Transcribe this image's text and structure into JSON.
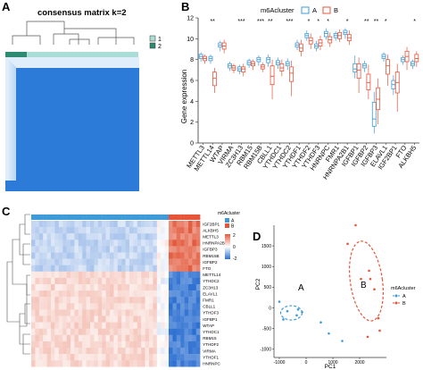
{
  "panels": {
    "a": {
      "letter": "A",
      "title": "consensus matrix k=2",
      "legend": [
        "1",
        "2"
      ],
      "colors": {
        "c1": "#a9ddd5",
        "c2": "#2e8b72",
        "light": "#dfeefa",
        "dark": "#2c7bd9"
      }
    },
    "b": {
      "letter": "B",
      "legend_title": "m6Acluster",
      "legend_items": [
        "A",
        "B"
      ],
      "ylabel": "Gene expression",
      "colors": {
        "A": "#3f9bd7",
        "B": "#e6553a"
      }
    },
    "c": {
      "letter": "C",
      "legend_title": "m6Acluster",
      "legend_items": [
        "A",
        "B"
      ],
      "scale_ticks": [
        "2",
        "0",
        "-2"
      ]
    },
    "d": {
      "letter": "D",
      "xlabel": "PC1",
      "ylabel": "PC2",
      "ellipse_labels": [
        "A",
        "B"
      ],
      "legend_title": "m6Acluster",
      "legend_items": [
        "A",
        "B"
      ]
    }
  },
  "chart_data": [
    {
      "type": "heatmap",
      "panel": "A",
      "title": "consensus matrix k=2",
      "clusters": [
        {
          "name": "1",
          "fraction": 0.08
        },
        {
          "name": "2",
          "fraction": 0.92
        }
      ],
      "legend": [
        "1",
        "2"
      ]
    },
    {
      "type": "box",
      "panel": "B",
      "ylabel": "Gene expression",
      "ylim": [
        0,
        12
      ],
      "yticks": [
        0,
        2,
        4,
        6,
        8,
        10,
        12
      ],
      "categories": [
        "METTL3",
        "METTL14",
        "WTAP",
        "VIRMA",
        "ZC3H13",
        "RBM15",
        "RBM15B",
        "CBLL1",
        "YTHDC1",
        "YTHDC2",
        "YTHDF1",
        "YTHDF2",
        "YTHDF3",
        "HNRNPC",
        "FMR1",
        "HNRNPA2B1",
        "IGFBP1",
        "IGFBP2",
        "IGFBP3",
        "ELAVL1",
        "IGF2BP1",
        "FTO",
        "ALKBH5"
      ],
      "significance": [
        "",
        "**",
        "",
        "",
        "***",
        "",
        "***",
        "**",
        "",
        "***",
        "",
        "*",
        "*",
        "*",
        "",
        "*",
        "",
        "**",
        "**",
        "*",
        "",
        "",
        "*"
      ],
      "series": [
        {
          "name": "A",
          "boxes": [
            [
              7.8,
              8.1,
              8.3,
              8.5,
              8.7
            ],
            [
              7.6,
              7.9,
              8.1,
              8.3,
              8.5
            ],
            [
              8.8,
              9.2,
              9.4,
              9.6,
              9.8
            ],
            [
              6.9,
              7.2,
              7.4,
              7.6,
              7.8
            ],
            [
              6.6,
              6.9,
              7.1,
              7.3,
              7.5
            ],
            [
              7.2,
              7.5,
              7.7,
              7.9,
              8.1
            ],
            [
              7.4,
              7.8,
              8.0,
              8.2,
              8.4
            ],
            [
              7.3,
              7.7,
              8.0,
              8.2,
              8.5
            ],
            [
              7.1,
              7.5,
              7.7,
              7.9,
              8.2
            ],
            [
              7.0,
              7.4,
              7.6,
              7.8,
              8.1
            ],
            [
              8.9,
              9.2,
              9.4,
              9.6,
              9.9
            ],
            [
              9.8,
              10.1,
              10.3,
              10.5,
              10.8
            ],
            [
              8.8,
              9.1,
              9.3,
              9.5,
              9.8
            ],
            [
              9.9,
              10.2,
              10.5,
              10.7,
              11.0
            ],
            [
              9.8,
              10.1,
              10.3,
              10.5,
              10.7
            ],
            [
              10.0,
              10.4,
              10.6,
              10.8,
              11.0
            ],
            [
              6.2,
              6.8,
              7.1,
              7.6,
              8.4
            ],
            [
              6.8,
              7.2,
              7.4,
              7.6,
              7.9
            ],
            [
              0.9,
              1.6,
              2.3,
              3.9,
              4.9
            ],
            [
              7.8,
              8.1,
              8.3,
              8.5,
              8.7
            ],
            [
              4.6,
              5.2,
              5.6,
              6.0,
              6.5
            ],
            [
              7.5,
              7.8,
              8.0,
              8.2,
              8.4
            ],
            [
              7.1,
              7.4,
              7.6,
              7.8,
              8.0
            ]
          ]
        },
        {
          "name": "B",
          "boxes": [
            [
              7.6,
              7.9,
              8.1,
              8.3,
              8.5
            ],
            [
              4.8,
              5.5,
              6.2,
              6.8,
              7.2
            ],
            [
              8.6,
              9.0,
              9.3,
              9.6,
              9.9
            ],
            [
              6.7,
              7.0,
              7.2,
              7.4,
              7.6
            ],
            [
              6.4,
              6.8,
              7.1,
              7.3,
              7.6
            ],
            [
              7.0,
              7.4,
              7.6,
              7.8,
              8.0
            ],
            [
              6.8,
              7.1,
              7.3,
              7.5,
              7.7
            ],
            [
              4.2,
              5.6,
              6.4,
              7.4,
              8.0
            ],
            [
              6.4,
              6.9,
              7.2,
              7.6,
              8.0
            ],
            [
              4.5,
              5.9,
              6.7,
              7.3,
              7.9
            ],
            [
              8.3,
              8.8,
              9.1,
              9.5,
              9.9
            ],
            [
              9.0,
              9.5,
              9.8,
              10.1,
              10.5
            ],
            [
              8.9,
              9.3,
              9.6,
              9.9,
              10.3
            ],
            [
              9.2,
              9.6,
              9.9,
              10.2,
              10.6
            ],
            [
              9.7,
              10.0,
              10.3,
              10.6,
              10.9
            ],
            [
              9.4,
              9.8,
              10.1,
              10.4,
              10.8
            ],
            [
              4.8,
              6.2,
              7.0,
              7.6,
              8.2
            ],
            [
              4.2,
              5.1,
              5.8,
              6.6,
              7.5
            ],
            [
              1.8,
              3.2,
              4.2,
              5.3,
              6.2
            ],
            [
              5.5,
              6.6,
              7.4,
              8.0,
              8.5
            ],
            [
              3.0,
              4.8,
              5.8,
              6.8,
              7.6
            ],
            [
              7.0,
              7.8,
              8.3,
              8.8,
              9.2
            ],
            [
              7.3,
              7.8,
              8.1,
              8.5,
              8.8
            ]
          ]
        }
      ]
    },
    {
      "type": "heatmap",
      "panel": "C",
      "rows": [
        "IGF2BP1",
        "ALKBH5",
        "METTL3",
        "HNRNPA2B1",
        "IGFBP3",
        "RBM15B",
        "IGFBP2",
        "FTO",
        "METTL14",
        "YTHDC2",
        "ZC3H13",
        "ELAVL1",
        "FMR1",
        "CBLL1",
        "YTHDF3",
        "IGFBP1",
        "WTAP",
        "YTHDC1",
        "RBM15",
        "YTHDF2",
        "VIRMA",
        "YTHDF1",
        "HNRNPC"
      ],
      "groups": [
        {
          "name": "A",
          "columns": 35
        },
        {
          "name": "B",
          "columns": 8
        }
      ],
      "scale": [
        -2,
        2
      ]
    },
    {
      "type": "scatter",
      "panel": "D",
      "xlabel": "PC1",
      "ylabel": "PC2",
      "xlim": [
        -1200,
        3000
      ],
      "ylim": [
        -1200,
        2000
      ],
      "xticks": [
        -1000,
        0,
        1000,
        2000
      ],
      "yticks": [
        -1000,
        -500,
        0,
        500,
        1000,
        1500
      ],
      "series": [
        {
          "name": "A",
          "points": [
            [
              -1000,
              150
            ],
            [
              -850,
              -280
            ],
            [
              -700,
              -80
            ],
            [
              -350,
              -180
            ],
            [
              -300,
              -40
            ],
            [
              -150,
              -100
            ],
            [
              550,
              -350
            ],
            [
              850,
              -620
            ],
            [
              1350,
              -800
            ]
          ]
        },
        {
          "name": "B",
          "points": [
            [
              1850,
              2000
            ],
            [
              1550,
              1550
            ],
            [
              2350,
              900
            ],
            [
              2400,
              700
            ],
            [
              2050,
              700
            ],
            [
              2550,
              450
            ],
            [
              2700,
              -250
            ],
            [
              2750,
              -550
            ],
            [
              2300,
              -700
            ]
          ]
        }
      ]
    }
  ]
}
